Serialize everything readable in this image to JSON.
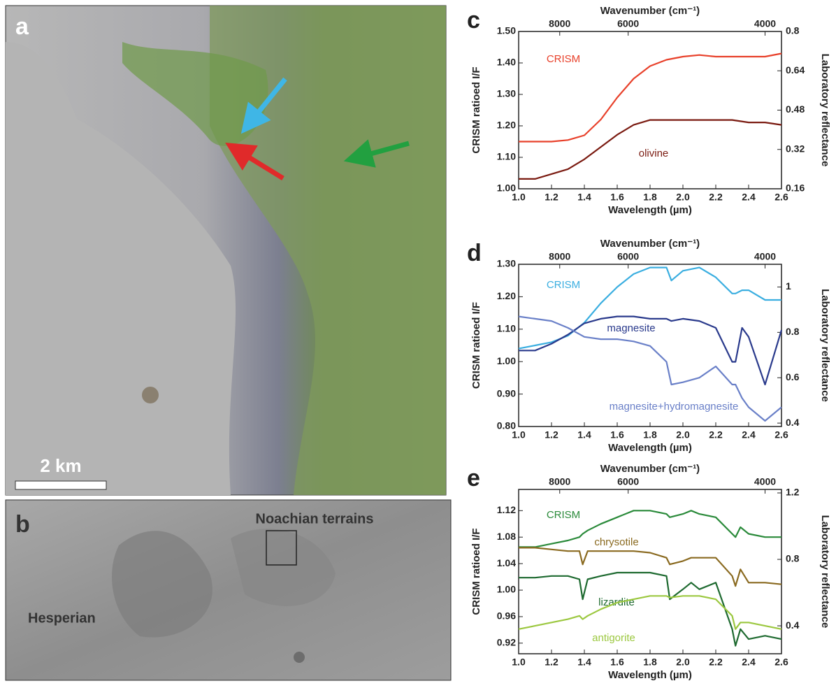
{
  "images": {
    "a": {
      "label": "a",
      "scale_bar": "2 km"
    },
    "b": {
      "label": "b",
      "annotations": [
        "Noachian terrains",
        "Hesperian"
      ]
    }
  },
  "chart_data": [
    {
      "type": "line",
      "panel": "c",
      "xlabel": "Wavelength (µm)",
      "ylabel": "CRISM ratioed I/F",
      "y2label": "Laboratory reflectance",
      "x2label": "Wavenumber (cm⁻¹)",
      "x": [
        1.0,
        1.1,
        1.2,
        1.3,
        1.4,
        1.5,
        1.6,
        1.7,
        1.8,
        1.9,
        2.0,
        2.1,
        2.2,
        2.3,
        2.4,
        2.5,
        2.6
      ],
      "xlim": [
        1.0,
        2.6
      ],
      "xticks": [
        {
          "value": 1.0,
          "label": "1.0"
        },
        1.2,
        1.4,
        1.6,
        1.8,
        {
          "value": 2.0,
          "label": "2.0"
        },
        2.2,
        2.4,
        2.6
      ],
      "x2ticks": [
        8000,
        6000,
        4000
      ],
      "ylim": [
        1.0,
        1.5
      ],
      "yticks": [
        {
          "value": 1.0,
          "label": "1.00"
        },
        {
          "value": 1.1,
          "label": "1.10"
        },
        {
          "value": 1.2,
          "label": "1.20"
        },
        {
          "value": 1.3,
          "label": "1.30"
        },
        {
          "value": 1.4,
          "label": "1.40"
        },
        {
          "value": 1.5,
          "label": "1.50"
        }
      ],
      "y2lim": [
        0.16,
        0.8
      ],
      "y2ticks": [
        0.16,
        0.32,
        0.48,
        0.64,
        0.8
      ],
      "series": [
        {
          "name": "CRISM",
          "color": "#e8402a",
          "values": [
            1.15,
            1.15,
            1.15,
            1.155,
            1.17,
            1.22,
            1.29,
            1.35,
            1.39,
            1.41,
            1.42,
            1.425,
            1.42,
            1.42,
            1.42,
            1.42,
            1.43
          ]
        },
        {
          "name": "olivine",
          "color": "#7a1a10",
          "axis": "y2",
          "values": [
            0.2,
            0.2,
            0.22,
            0.24,
            0.28,
            0.33,
            0.38,
            0.42,
            0.44,
            0.44,
            0.44,
            0.44,
            0.44,
            0.44,
            0.43,
            0.43,
            0.42
          ]
        }
      ]
    },
    {
      "type": "line",
      "panel": "d",
      "xlabel": "Wavelength (µm)",
      "ylabel": "CRISM ratioed I/F",
      "y2label": "Laboratory reflectance",
      "x2label": "Wavenumber (cm⁻¹)",
      "x": [
        1.0,
        1.1,
        1.2,
        1.3,
        1.4,
        1.5,
        1.6,
        1.7,
        1.8,
        1.9,
        1.93,
        2.0,
        2.1,
        2.2,
        2.3,
        2.32,
        2.36,
        2.4,
        2.5,
        2.6
      ],
      "xlim": [
        1.0,
        2.6
      ],
      "xticks": [
        {
          "value": 1.0,
          "label": "1.0"
        },
        1.2,
        1.4,
        1.6,
        1.8,
        {
          "value": 2.0,
          "label": "2.0"
        },
        2.2,
        2.4,
        2.6
      ],
      "x2ticks": [
        8000,
        6000,
        4000
      ],
      "ylim": [
        0.8,
        1.3
      ],
      "yticks": [
        {
          "value": 0.8,
          "label": "0.80"
        },
        {
          "value": 0.9,
          "label": "0.90"
        },
        {
          "value": 1.0,
          "label": "1.00"
        },
        {
          "value": 1.1,
          "label": "1.10"
        },
        {
          "value": 1.2,
          "label": "1.20"
        },
        {
          "value": 1.3,
          "label": "1.30"
        }
      ],
      "y2lim": [
        0.385,
        1.1
      ],
      "y2ticks": [
        0.4,
        0.6,
        0.8,
        1
      ],
      "series": [
        {
          "name": "CRISM",
          "color": "#3aaee0",
          "values": [
            1.04,
            1.05,
            1.06,
            1.08,
            1.12,
            1.18,
            1.23,
            1.27,
            1.29,
            1.29,
            1.25,
            1.28,
            1.29,
            1.26,
            1.21,
            1.21,
            1.22,
            1.22,
            1.19,
            1.19
          ]
        },
        {
          "name": "magnesite",
          "color": "#2a3a8c",
          "axis": "y2",
          "values": [
            0.72,
            0.72,
            0.75,
            0.79,
            0.84,
            0.86,
            0.87,
            0.87,
            0.86,
            0.86,
            0.85,
            0.86,
            0.85,
            0.82,
            0.67,
            0.67,
            0.82,
            0.78,
            0.57,
            0.81
          ]
        },
        {
          "name": "magnesite+hydromagnesite",
          "color": "#6a80c8",
          "axis": "y2",
          "values": [
            0.87,
            0.86,
            0.85,
            0.82,
            0.78,
            0.77,
            0.77,
            0.76,
            0.74,
            0.67,
            0.57,
            0.58,
            0.6,
            0.65,
            0.57,
            0.57,
            0.51,
            0.47,
            0.41,
            0.47
          ]
        }
      ]
    },
    {
      "type": "line",
      "panel": "e",
      "xlabel": "Wavelength (µm)",
      "ylabel": "CRISM ratioed I/F",
      "y2label": "Laboratory reflectance",
      "x2label": "Wavenumber (cm⁻¹)",
      "x": [
        1.0,
        1.1,
        1.2,
        1.3,
        1.37,
        1.39,
        1.42,
        1.5,
        1.6,
        1.7,
        1.8,
        1.9,
        1.92,
        2.0,
        2.05,
        2.1,
        2.2,
        2.3,
        2.32,
        2.35,
        2.4,
        2.5,
        2.6
      ],
      "xlim": [
        1.0,
        2.6
      ],
      "xticks": [
        {
          "value": 1.0,
          "label": "1.0"
        },
        1.2,
        1.4,
        1.6,
        1.8,
        {
          "value": 2.0,
          "label": "2.0"
        },
        2.2,
        2.4,
        2.6
      ],
      "x2ticks": [
        8000,
        6000,
        4000
      ],
      "ylim": [
        0.904,
        1.152
      ],
      "yticks": [
        0.92,
        0.96,
        {
          "value": 1.0,
          "label": "1.00"
        },
        1.04,
        1.08,
        1.12
      ],
      "y2lim": [
        0.232,
        1.221
      ],
      "y2ticks": [
        0.4,
        0.8,
        1.2
      ],
      "series": [
        {
          "name": "CRISM",
          "color": "#2a8a3a",
          "values": [
            1.065,
            1.065,
            1.07,
            1.075,
            1.08,
            1.085,
            1.09,
            1.1,
            1.11,
            1.12,
            1.12,
            1.115,
            1.11,
            1.115,
            1.12,
            1.115,
            1.11,
            1.085,
            1.08,
            1.095,
            1.085,
            1.08,
            1.08
          ]
        },
        {
          "name": "chrysotile",
          "color": "#8a6a20",
          "axis": "y2",
          "values": [
            0.87,
            0.87,
            0.86,
            0.85,
            0.85,
            0.77,
            0.85,
            0.85,
            0.85,
            0.85,
            0.84,
            0.81,
            0.77,
            0.79,
            0.81,
            0.81,
            0.81,
            0.7,
            0.64,
            0.74,
            0.66,
            0.66,
            0.65
          ]
        },
        {
          "name": "lizardite",
          "color": "#1e6a30",
          "axis": "y2",
          "values": [
            0.69,
            0.69,
            0.7,
            0.7,
            0.68,
            0.56,
            0.68,
            0.7,
            0.72,
            0.72,
            0.72,
            0.7,
            0.56,
            0.62,
            0.66,
            0.62,
            0.66,
            0.38,
            0.28,
            0.38,
            0.32,
            0.34,
            0.32
          ]
        },
        {
          "name": "antigorite",
          "color": "#9cc840",
          "axis": "y2",
          "values": [
            0.38,
            0.4,
            0.42,
            0.44,
            0.46,
            0.44,
            0.46,
            0.5,
            0.54,
            0.56,
            0.58,
            0.58,
            0.57,
            0.58,
            0.58,
            0.58,
            0.56,
            0.46,
            0.38,
            0.42,
            0.42,
            0.4,
            0.38
          ]
        }
      ]
    }
  ]
}
